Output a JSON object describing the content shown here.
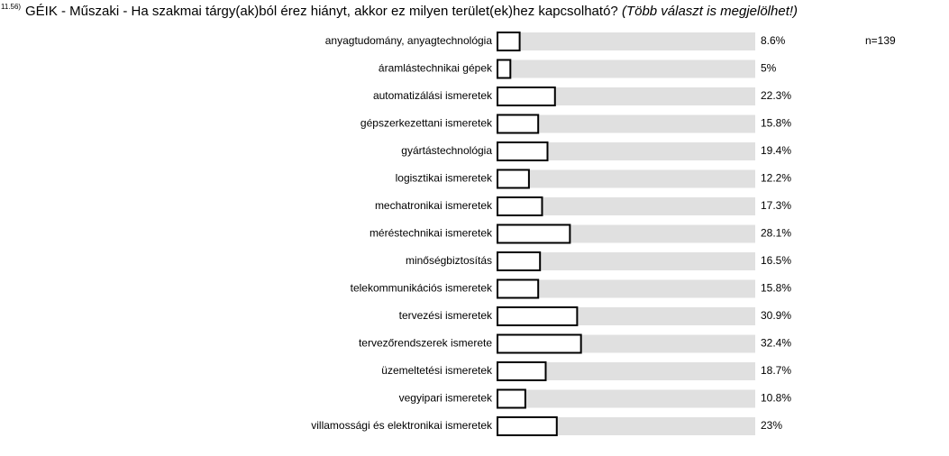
{
  "chart_data": {
    "type": "bar",
    "question_number": "11.56)",
    "title": "GÉIK - Műszaki - Ha szakmai tárgy(ak)ból érez hiányt, akkor ez milyen terület(ek)hez kapcsolható?",
    "subtitle": "(Több választ is megjelölhet!)",
    "annotation": "n=139",
    "categories": [
      "anyagtudomány, anyagtechnológia",
      "áramlástechnikai gépek",
      "automatizálási ismeretek",
      "gépszerkezettani ismeretek",
      "gyártástechnológia",
      "logisztikai ismeretek",
      "mechatronikai ismeretek",
      "méréstechnikai ismeretek",
      "minőségbiztosítás",
      "telekommunikációs ismeretek",
      "tervezési ismeretek",
      "tervezőrendszerek ismerete",
      "üzemeltetési ismeretek",
      "vegyipari ismeretek",
      "villamossági és elektronikai ismeretek"
    ],
    "values": [
      8.6,
      5,
      22.3,
      15.8,
      19.4,
      12.2,
      17.3,
      28.1,
      16.5,
      15.8,
      30.9,
      32.4,
      18.7,
      10.8,
      23
    ],
    "value_labels": [
      "8.6%",
      "5%",
      "22.3%",
      "15.8%",
      "19.4%",
      "12.2%",
      "17.3%",
      "28.1%",
      "16.5%",
      "15.8%",
      "30.9%",
      "32.4%",
      "18.7%",
      "10.8%",
      "23%"
    ],
    "xlim": [
      0,
      100
    ],
    "color": "#ffffff",
    "track_color": "#e0e0e0"
  }
}
